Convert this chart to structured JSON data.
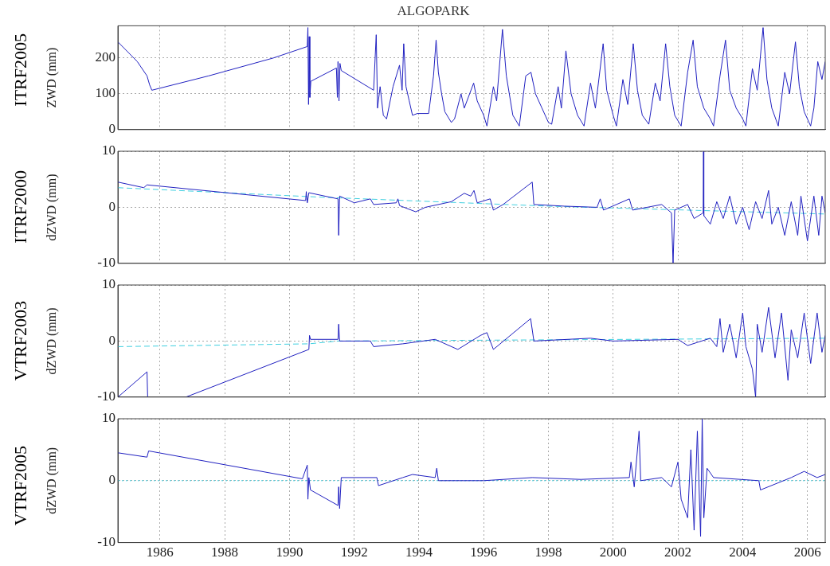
{
  "chart_data": [
    {
      "type": "line",
      "title": "ALGOPARK",
      "ylabel": "ZWD (mm)",
      "annotations": [
        "ITRF2005"
      ],
      "xlim": [
        1984.7,
        2006.55
      ],
      "xticks": [
        1986,
        1988,
        1990,
        1992,
        1994,
        1996,
        1998,
        2000,
        2002,
        2004,
        2006
      ],
      "ylim": [
        0,
        290
      ],
      "yticks": [
        0,
        100,
        200
      ],
      "grid": true,
      "tick_labels": "y",
      "marker": "none",
      "series": [
        {
          "color": "#2020c0",
          "x": [
            1984.7,
            1985.3,
            1985.6,
            1985.68,
            1985.75,
            1987.5,
            1989.5,
            1990.55,
            1990.57,
            1990.59,
            1990.61,
            1990.63,
            1990.66,
            1991.45,
            1991.48,
            1991.5,
            1991.53,
            1991.56,
            1991.6,
            1992.6,
            1992.68,
            1992.72,
            1992.8,
            1992.9,
            1993.0,
            1993.2,
            1993.4,
            1993.48,
            1993.53,
            1993.6,
            1993.7,
            1993.8,
            1993.95,
            1994.3,
            1994.45,
            1994.53,
            1994.6,
            1994.7,
            1994.8,
            1995.0,
            1995.1,
            1995.3,
            1995.4,
            1995.69,
            1995.8,
            1996.0,
            1996.1,
            1996.3,
            1996.4,
            1996.58,
            1996.7,
            1996.9,
            1997.1,
            1997.3,
            1997.46,
            1997.6,
            1997.8,
            1998.0,
            1998.1,
            1998.3,
            1998.4,
            1998.54,
            1998.7,
            1998.9,
            1999.1,
            1999.3,
            1999.45,
            1999.69,
            1999.8,
            2000.0,
            2000.1,
            2000.3,
            2000.45,
            2000.62,
            2000.75,
            2000.9,
            2001.1,
            2001.3,
            2001.45,
            2001.62,
            2001.75,
            2001.9,
            2002.1,
            2002.3,
            2002.47,
            2002.6,
            2002.8,
            2003.0,
            2003.1,
            2003.3,
            2003.47,
            2003.6,
            2003.8,
            2004.0,
            2004.1,
            2004.3,
            2004.45,
            2004.63,
            2004.75,
            2004.9,
            2005.1,
            2005.3,
            2005.45,
            2005.63,
            2005.75,
            2005.9,
            2006.1,
            2006.2,
            2006.32,
            2006.45,
            2006.55
          ],
          "values": [
            245,
            190,
            150,
            125,
            110,
            150,
            200,
            232,
            285,
            70,
            260,
            90,
            135,
            172,
            90,
            190,
            80,
            185,
            165,
            110,
            265,
            60,
            120,
            40,
            30,
            120,
            180,
            110,
            240,
            120,
            80,
            40,
            45,
            45,
            150,
            250,
            160,
            100,
            50,
            20,
            30,
            100,
            60,
            130,
            80,
            40,
            10,
            120,
            80,
            280,
            150,
            40,
            10,
            150,
            160,
            100,
            60,
            20,
            15,
            120,
            60,
            220,
            100,
            40,
            10,
            130,
            60,
            240,
            110,
            40,
            10,
            140,
            70,
            240,
            110,
            40,
            15,
            130,
            80,
            240,
            120,
            40,
            10,
            160,
            250,
            120,
            60,
            30,
            10,
            150,
            250,
            110,
            60,
            30,
            10,
            170,
            110,
            285,
            140,
            60,
            10,
            160,
            100,
            245,
            120,
            50,
            10,
            60,
            190,
            140,
            190
          ]
        }
      ]
    },
    {
      "type": "line",
      "ylabel": "dZWD (mm)",
      "annotations": [
        "ITRF2000"
      ],
      "xlim": [
        1984.7,
        2006.55
      ],
      "xticks": [
        1986,
        1988,
        1990,
        1992,
        1994,
        1996,
        1998,
        2000,
        2002,
        2004,
        2006
      ],
      "ylim": [
        -10,
        10
      ],
      "yticks": [
        -10,
        0,
        10
      ],
      "grid": true,
      "tick_labels": "y",
      "marker": "none",
      "series": [
        {
          "color": "#2020c0",
          "x": [
            1984.7,
            1985.5,
            1985.6,
            1990.5,
            1990.52,
            1990.55,
            1990.6,
            1991.5,
            1991.52,
            1991.55,
            1992.0,
            1992.5,
            1992.6,
            1993.3,
            1993.35,
            1993.4,
            1993.9,
            1994.2,
            1995.0,
            1995.4,
            1995.6,
            1995.7,
            1995.8,
            1996.2,
            1996.3,
            1996.6,
            1997.5,
            1997.55,
            1998.5,
            1999.5,
            1999.6,
            1999.7,
            2000.5,
            2000.6,
            2001.5,
            2001.8,
            2001.85,
            2001.9,
            2002.3,
            2002.5,
            2002.78,
            2002.79,
            2002.8,
            2003.0,
            2003.2,
            2003.4,
            2003.6,
            2003.8,
            2004.0,
            2004.2,
            2004.4,
            2004.6,
            2004.8,
            2004.9,
            2005.1,
            2005.3,
            2005.5,
            2005.7,
            2005.8,
            2006.0,
            2006.2,
            2006.35,
            2006.45,
            2006.55
          ],
          "values": [
            4.5,
            3.5,
            4,
            1.2,
            2.8,
            0.8,
            2.6,
            1.5,
            -5,
            2,
            0.8,
            1.5,
            0.5,
            0.8,
            1.5,
            0.3,
            -0.8,
            0,
            1,
            2.5,
            2,
            3,
            0.8,
            1.5,
            -0.5,
            0.5,
            4.5,
            0.5,
            0.2,
            0,
            1.5,
            -0.5,
            1.5,
            -0.5,
            0.5,
            -1,
            -10,
            -0.5,
            0.5,
            -2,
            -1,
            10,
            -1.5,
            -3,
            1,
            -2,
            2,
            -3,
            0,
            -4,
            1,
            -2,
            3,
            -3,
            0,
            -5,
            1,
            -5,
            2,
            -6,
            2,
            -5,
            2,
            -1
          ]
        },
        {
          "color": "#40d0e0",
          "line_style": "dashed",
          "x": [
            1984.7,
            1991,
            1998,
            2006.55
          ],
          "values": [
            3.5,
            1.8,
            0.2,
            -1.2
          ]
        }
      ]
    },
    {
      "type": "line",
      "ylabel": "dZWD (mm)",
      "annotations": [
        "VTRF2003"
      ],
      "xlim": [
        1984.7,
        2006.55
      ],
      "xticks": [
        1986,
        1988,
        1990,
        1992,
        1994,
        1996,
        1998,
        2000,
        2002,
        2004,
        2006
      ],
      "ylim": [
        -10,
        10
      ],
      "yticks": [
        -10,
        0,
        10
      ],
      "grid": true,
      "tick_labels": "y",
      "marker": "none",
      "series": [
        {
          "color": "#2020c0",
          "x": [
            1984.7,
            1985.6,
            1985.62,
            1985.7,
            1986.8,
            1990.6,
            1990.62,
            1990.65,
            1991.5,
            1991.52,
            1991.55,
            1992.5,
            1992.6,
            1993.5,
            1994.5,
            1995.2,
            1995.9,
            1996.1,
            1996.3,
            1997.45,
            1997.55,
            1999.3,
            2000,
            2002,
            2002.3,
            2003,
            2003.2,
            2003.3,
            2003.4,
            2003.6,
            2003.8,
            2004.0,
            2004.1,
            2004.3,
            2004.4,
            2004.45,
            2004.6,
            2004.8,
            2005.0,
            2005.2,
            2005.4,
            2005.5,
            2005.7,
            2005.9,
            2006.1,
            2006.3,
            2006.45,
            2006.55
          ],
          "values": [
            -10,
            -5.5,
            -10,
            null,
            -10,
            -1.5,
            1,
            0.3,
            0.3,
            3,
            0,
            0,
            -1,
            -0.5,
            0.3,
            -1.5,
            1,
            1.5,
            -1.5,
            4,
            0,
            0.5,
            0,
            0.3,
            -0.8,
            0.5,
            -1,
            4,
            -2,
            3,
            -3,
            5,
            -1,
            -5,
            -10,
            3,
            -2,
            6,
            -3,
            5,
            -7,
            2,
            -3,
            5,
            -4,
            5,
            -2,
            1
          ]
        },
        {
          "color": "#40d0e0",
          "line_style": "dashed",
          "x": [
            1984.7,
            1990.6,
            1991.5,
            2006.55
          ],
          "values": [
            -1,
            -0.5,
            0,
            0.5
          ]
        }
      ]
    },
    {
      "type": "line",
      "ylabel": "dZWD (mm)",
      "annotations": [
        "VTRF2005"
      ],
      "xlim": [
        1984.7,
        2006.55
      ],
      "xticks": [
        1986,
        1988,
        1990,
        1992,
        1994,
        1996,
        1998,
        2000,
        2002,
        2004,
        2006
      ],
      "ylim": [
        -10,
        10
      ],
      "yticks": [
        -10,
        0,
        10
      ],
      "grid": true,
      "marker": "none",
      "series": [
        {
          "color": "#2020c0",
          "x": [
            1984.7,
            1985.6,
            1985.65,
            1990.4,
            1990.55,
            1990.57,
            1990.6,
            1990.65,
            1991.5,
            1991.52,
            1991.55,
            1991.6,
            1992.7,
            1992.75,
            1993.5,
            1993.8,
            1994.5,
            1994.55,
            1994.6,
            1996,
            1997.5,
            1999,
            2000.5,
            2000.55,
            2000.65,
            2000.8,
            2000.85,
            2001.5,
            2001.8,
            2002.0,
            2002.1,
            2002.3,
            2002.4,
            2002.5,
            2002.6,
            2002.7,
            2002.75,
            2002.8,
            2002.9,
            2003.1,
            2004.5,
            2004.55,
            2005.5,
            2005.9,
            2006.3,
            2006.55
          ],
          "values": [
            4.5,
            3.8,
            4.8,
            0.3,
            2.5,
            -3,
            0.5,
            -1.5,
            -4,
            -1,
            -4.5,
            0.5,
            0.5,
            -0.8,
            0.5,
            1,
            0.5,
            2,
            0,
            0,
            0.5,
            0.2,
            0.5,
            3,
            -1,
            8,
            0,
            0.5,
            -1,
            3,
            -3,
            -6,
            5,
            -8,
            8,
            -9,
            10,
            -6,
            2,
            0.5,
            0,
            -1.5,
            0.5,
            1.5,
            0.5,
            1
          ]
        },
        {
          "color": "#40d0e0",
          "line_style": "dotted",
          "x": [
            1984.7,
            2006.55
          ],
          "values": [
            0,
            0
          ]
        }
      ]
    }
  ]
}
